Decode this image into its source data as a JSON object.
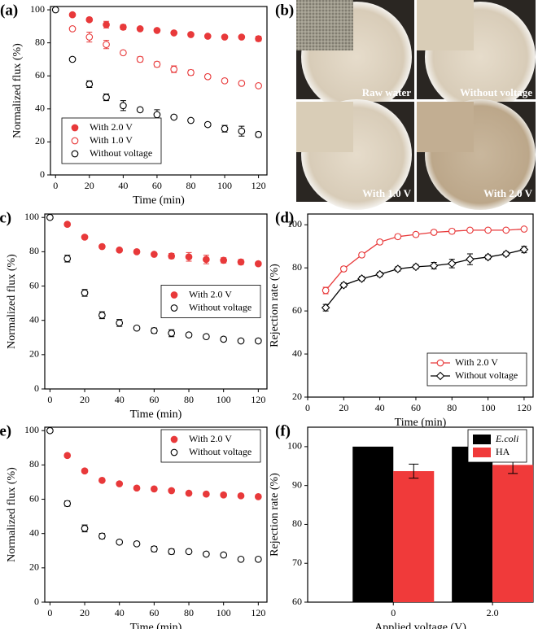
{
  "photos": {
    "label": "(b)",
    "captions": [
      "Raw water",
      "Without voltage",
      "With 1.0 V",
      "With 2.0 V"
    ]
  },
  "chart_data": [
    {
      "panel": "(a)",
      "type": "scatter",
      "xlabel": "Time (min)",
      "ylabel": "Normalized flux (%)",
      "x": [
        0,
        10,
        20,
        30,
        40,
        50,
        60,
        70,
        80,
        90,
        100,
        110,
        120
      ],
      "xlim": [
        -3,
        125
      ],
      "xticks": [
        0,
        20,
        40,
        60,
        80,
        100,
        120
      ],
      "ylim": [
        0,
        102
      ],
      "yticks": [
        0,
        20,
        40,
        60,
        80,
        100
      ],
      "legend": "lower left",
      "series": [
        {
          "name": "With 2.0 V",
          "color": "#e8393a",
          "marker": "filled",
          "values": [
            null,
            97,
            94,
            91,
            89.5,
            88.5,
            87.5,
            86,
            85,
            84,
            83.5,
            83.5,
            82.5
          ],
          "errors": [
            null,
            1,
            1,
            2,
            1.5,
            1,
            1,
            0.5,
            1,
            1,
            1,
            1,
            1.5
          ]
        },
        {
          "name": "With 1.0 V",
          "color": "#e8393a",
          "marker": "open",
          "values": [
            null,
            88.5,
            83.5,
            79,
            74,
            70,
            67,
            64,
            62,
            59.5,
            57,
            55.5,
            54
          ],
          "errors": [
            null,
            1,
            3,
            2.5,
            1,
            1.5,
            1.5,
            2,
            1.5,
            1,
            1,
            1,
            1
          ]
        },
        {
          "name": "Without voltage",
          "color": "#000000",
          "marker": "open",
          "values": [
            100,
            70,
            55,
            47,
            42,
            39.5,
            36.5,
            35,
            33,
            30.5,
            28,
            26.5,
            24.5
          ],
          "errors": [
            null,
            1,
            2,
            2,
            3,
            null,
            3,
            1,
            1,
            1,
            2,
            3,
            1.5
          ]
        }
      ]
    },
    {
      "panel": "(c)",
      "type": "scatter",
      "xlabel": "Time (min)",
      "ylabel": "Normalized flux (%)",
      "x": [
        0,
        10,
        20,
        30,
        40,
        50,
        60,
        70,
        80,
        90,
        100,
        110,
        120
      ],
      "xlim": [
        -3,
        125
      ],
      "xticks": [
        0,
        20,
        40,
        60,
        80,
        100,
        120
      ],
      "ylim": [
        0,
        102
      ],
      "yticks": [
        0,
        20,
        40,
        60,
        80,
        100
      ],
      "legend": "center right",
      "series": [
        {
          "name": "With 2.0 V",
          "color": "#e8393a",
          "marker": "filled",
          "values": [
            null,
            96,
            88.5,
            83,
            81,
            80,
            78.5,
            77.5,
            77,
            75.5,
            75,
            74,
            73
          ],
          "errors": [
            null,
            1,
            1,
            1,
            1,
            1,
            1,
            1.5,
            2.5,
            2.5,
            1.5,
            1.5,
            1
          ]
        },
        {
          "name": "Without voltage",
          "color": "#000000",
          "marker": "open",
          "values": [
            100,
            76,
            56,
            43,
            38.5,
            35.5,
            34,
            32.5,
            31.5,
            30.5,
            29,
            28,
            28
          ],
          "errors": [
            null,
            2,
            2,
            2,
            2,
            1,
            1.5,
            2,
            1,
            1,
            1,
            1,
            1
          ]
        }
      ]
    },
    {
      "panel": "(d)",
      "type": "line",
      "xlabel": "Time (min)",
      "ylabel": "Rejection rate (%)",
      "x": [
        10,
        20,
        30,
        40,
        50,
        60,
        70,
        80,
        90,
        100,
        110,
        120
      ],
      "xlim": [
        0,
        125
      ],
      "xticks": [
        0,
        20,
        40,
        60,
        80,
        100,
        120
      ],
      "ylim": [
        20,
        105
      ],
      "yticks": [
        20,
        40,
        60,
        80,
        100
      ],
      "legend": "lower right",
      "series": [
        {
          "name": "With 2.0 V",
          "color": "#e8393a",
          "marker": "open",
          "values": [
            69.5,
            79.5,
            86,
            92,
            94.5,
            95.5,
            96.5,
            97,
            97.5,
            97.5,
            97.5,
            98
          ],
          "errors": [
            1.5,
            1,
            1,
            1,
            1,
            1,
            1,
            1,
            0.5,
            0.5,
            0.5,
            0.5
          ]
        },
        {
          "name": "Without voltage",
          "color": "#000000",
          "marker": "diamond",
          "values": [
            61.5,
            72,
            75,
            77,
            79.5,
            80.5,
            81,
            82,
            84,
            85,
            86.5,
            88.5
          ],
          "errors": [
            1.5,
            1,
            1,
            1,
            1,
            1,
            1.5,
            2,
            2.5,
            1,
            1,
            1.5
          ]
        }
      ]
    },
    {
      "panel": "(e)",
      "type": "scatter",
      "xlabel": "Time (min)",
      "ylabel": "Normalized flux (%)",
      "x": [
        0,
        10,
        20,
        30,
        40,
        50,
        60,
        70,
        80,
        90,
        100,
        110,
        120
      ],
      "xlim": [
        -3,
        125
      ],
      "xticks": [
        0,
        20,
        40,
        60,
        80,
        100,
        120
      ],
      "ylim": [
        0,
        102
      ],
      "yticks": [
        0,
        20,
        40,
        60,
        80,
        100
      ],
      "legend": "upper right",
      "series": [
        {
          "name": "With 2.0 V",
          "color": "#e8393a",
          "marker": "filled",
          "values": [
            null,
            85.5,
            76.5,
            71,
            69,
            66.5,
            66,
            65,
            63.5,
            63,
            62.5,
            62,
            61.5
          ],
          "errors": [
            null,
            1,
            1,
            1,
            1,
            1,
            1,
            1,
            1,
            1,
            1,
            1,
            1
          ]
        },
        {
          "name": "Without voltage",
          "color": "#000000",
          "marker": "open",
          "values": [
            100,
            57.5,
            43,
            38.5,
            35,
            34,
            31,
            29.5,
            29.5,
            28,
            27.5,
            25,
            25
          ],
          "errors": [
            null,
            1.5,
            2,
            1.5,
            1,
            1,
            1.5,
            1.5,
            1,
            1,
            1,
            1,
            1
          ]
        }
      ]
    },
    {
      "panel": "(f)",
      "type": "bar",
      "xlabel": "Applied voltage (V)",
      "ylabel": "Rejection rate (%)",
      "categories": [
        "0",
        "2.0"
      ],
      "ylim": [
        60,
        105
      ],
      "yticks": [
        60,
        70,
        80,
        90,
        100
      ],
      "legend": "upper right",
      "series": [
        {
          "name": "E.coli",
          "color": "#000000",
          "values": [
            100,
            100
          ],
          "errors": [
            null,
            null
          ]
        },
        {
          "name": "HA",
          "color": "#f03a3a",
          "values": [
            93.7,
            95.3
          ],
          "errors": [
            1.8,
            2.2
          ]
        }
      ]
    }
  ]
}
